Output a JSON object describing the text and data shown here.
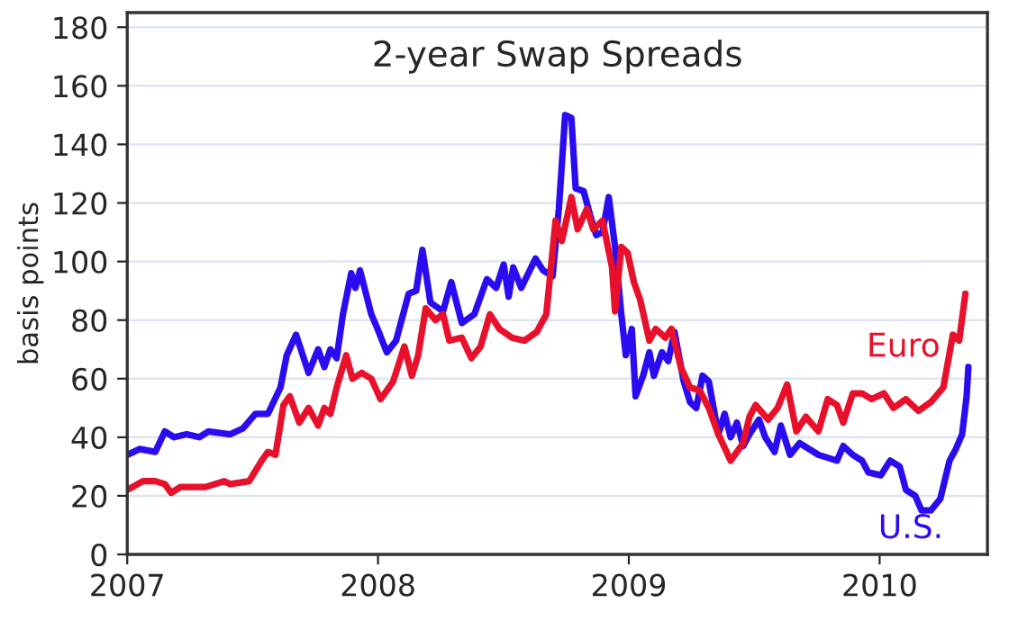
{
  "chart_data": {
    "type": "line",
    "title": "2-year Swap Spreads",
    "ylabel": "basis points",
    "xlim": [
      2007,
      2010.43
    ],
    "xticks": [
      2007,
      2008,
      2009,
      2010
    ],
    "ylim": [
      0,
      185
    ],
    "yticks": [
      0,
      20,
      40,
      60,
      80,
      100,
      120,
      140,
      160,
      180
    ],
    "grid": "y",
    "legend": false,
    "line_style": "solid",
    "series": [
      {
        "name": "U.S.",
        "color": "#2a0cf0",
        "x": [
          2007.0,
          2007.05,
          2007.112,
          2007.15,
          2007.187,
          2007.237,
          2007.287,
          2007.324,
          2007.411,
          2007.461,
          2007.511,
          2007.561,
          2007.611,
          2007.636,
          2007.673,
          2007.723,
          2007.761,
          2007.786,
          2007.81,
          2007.835,
          2007.86,
          2007.893,
          2007.91,
          2007.928,
          2007.973,
          2007.998,
          2008.035,
          2008.072,
          2008.122,
          2008.152,
          2008.177,
          2008.209,
          2008.259,
          2008.292,
          2008.334,
          2008.384,
          2008.434,
          2008.471,
          2008.501,
          2008.521,
          2008.539,
          2008.571,
          2008.628,
          2008.658,
          2008.696,
          2008.721,
          2008.746,
          2008.771,
          2008.788,
          2008.82,
          2008.845,
          2008.87,
          2008.895,
          2008.92,
          2008.945,
          2008.97,
          2008.988,
          2009.012,
          2009.027,
          2009.057,
          2009.082,
          2009.1,
          2009.132,
          2009.157,
          2009.182,
          2009.219,
          2009.244,
          2009.269,
          2009.294,
          2009.319,
          2009.357,
          2009.382,
          2009.406,
          2009.431,
          2009.456,
          2009.481,
          2009.519,
          2009.544,
          2009.581,
          2009.606,
          2009.643,
          2009.681,
          2009.756,
          2009.83,
          2009.855,
          2009.893,
          2009.93,
          2009.955,
          2010.005,
          2010.042,
          2010.08,
          2010.105,
          2010.142,
          2010.167,
          2010.204,
          2010.242,
          2010.279,
          2010.304,
          2010.329,
          2010.347,
          2010.354
        ],
        "values": [
          34,
          36,
          35,
          42,
          40,
          41,
          40,
          42,
          41,
          43,
          48,
          48,
          57,
          68,
          75,
          62,
          70,
          64,
          70,
          67,
          82,
          96,
          91,
          97,
          82,
          77,
          69,
          73,
          89,
          90,
          104,
          86,
          83,
          93,
          79,
          82,
          94,
          91,
          99,
          88,
          98,
          91,
          101,
          97,
          95,
          118,
          150,
          149,
          125,
          124,
          116,
          109,
          110,
          122,
          105,
          82,
          68,
          77,
          54,
          61,
          69,
          61,
          69,
          66,
          76,
          59,
          52,
          50,
          61,
          59,
          41,
          48,
          40,
          45,
          37,
          41,
          46,
          40,
          35,
          44,
          34,
          38,
          34,
          32,
          37,
          34,
          32,
          28,
          27,
          32,
          30,
          22,
          20,
          15,
          15,
          19,
          32,
          36,
          41,
          54,
          64
        ]
      },
      {
        "name": "Euro",
        "color": "#e8102a",
        "x": [
          2007.0,
          2007.062,
          2007.112,
          2007.15,
          2007.175,
          2007.212,
          2007.312,
          2007.387,
          2007.411,
          2007.486,
          2007.536,
          2007.561,
          2007.591,
          2007.623,
          2007.648,
          2007.686,
          2007.723,
          2007.761,
          2007.786,
          2007.81,
          2007.835,
          2007.873,
          2007.898,
          2007.935,
          2007.973,
          2008.01,
          2008.06,
          2008.105,
          2008.135,
          2008.16,
          2008.19,
          2008.229,
          2008.259,
          2008.284,
          2008.334,
          2008.372,
          2008.409,
          2008.446,
          2008.484,
          2008.534,
          2008.584,
          2008.633,
          2008.671,
          2008.708,
          2008.733,
          2008.771,
          2008.796,
          2008.833,
          2008.858,
          2008.895,
          2008.933,
          2008.945,
          2008.97,
          2008.995,
          2009.02,
          2009.045,
          2009.082,
          2009.107,
          2009.145,
          2009.17,
          2009.207,
          2009.244,
          2009.282,
          2009.319,
          2009.357,
          2009.406,
          2009.456,
          2009.481,
          2009.506,
          2009.556,
          2009.593,
          2009.631,
          2009.668,
          2009.706,
          2009.756,
          2009.793,
          2009.83,
          2009.855,
          2009.893,
          2009.93,
          2009.968,
          2010.017,
          2010.055,
          2010.105,
          2010.155,
          2010.204,
          2010.254,
          2010.292,
          2010.317,
          2010.342
        ],
        "values": [
          22,
          25,
          25,
          24,
          21,
          23,
          23,
          25,
          24,
          25,
          32,
          35,
          34,
          51,
          54,
          45,
          50,
          44,
          50,
          48,
          57,
          68,
          60,
          62,
          60,
          53,
          59,
          71,
          61,
          68,
          84,
          80,
          82,
          73,
          74,
          67,
          71,
          82,
          77,
          74,
          73,
          76,
          82,
          114,
          107,
          122,
          111,
          118,
          111,
          114,
          98,
          83,
          105,
          103,
          93,
          87,
          73,
          77,
          74,
          77,
          64,
          57,
          56,
          50,
          41,
          32,
          38,
          47,
          51,
          46,
          50,
          58,
          42,
          47,
          42,
          53,
          51,
          45,
          55,
          55,
          53,
          55,
          50,
          53,
          49,
          52,
          57,
          75,
          73,
          89
        ]
      }
    ]
  }
}
